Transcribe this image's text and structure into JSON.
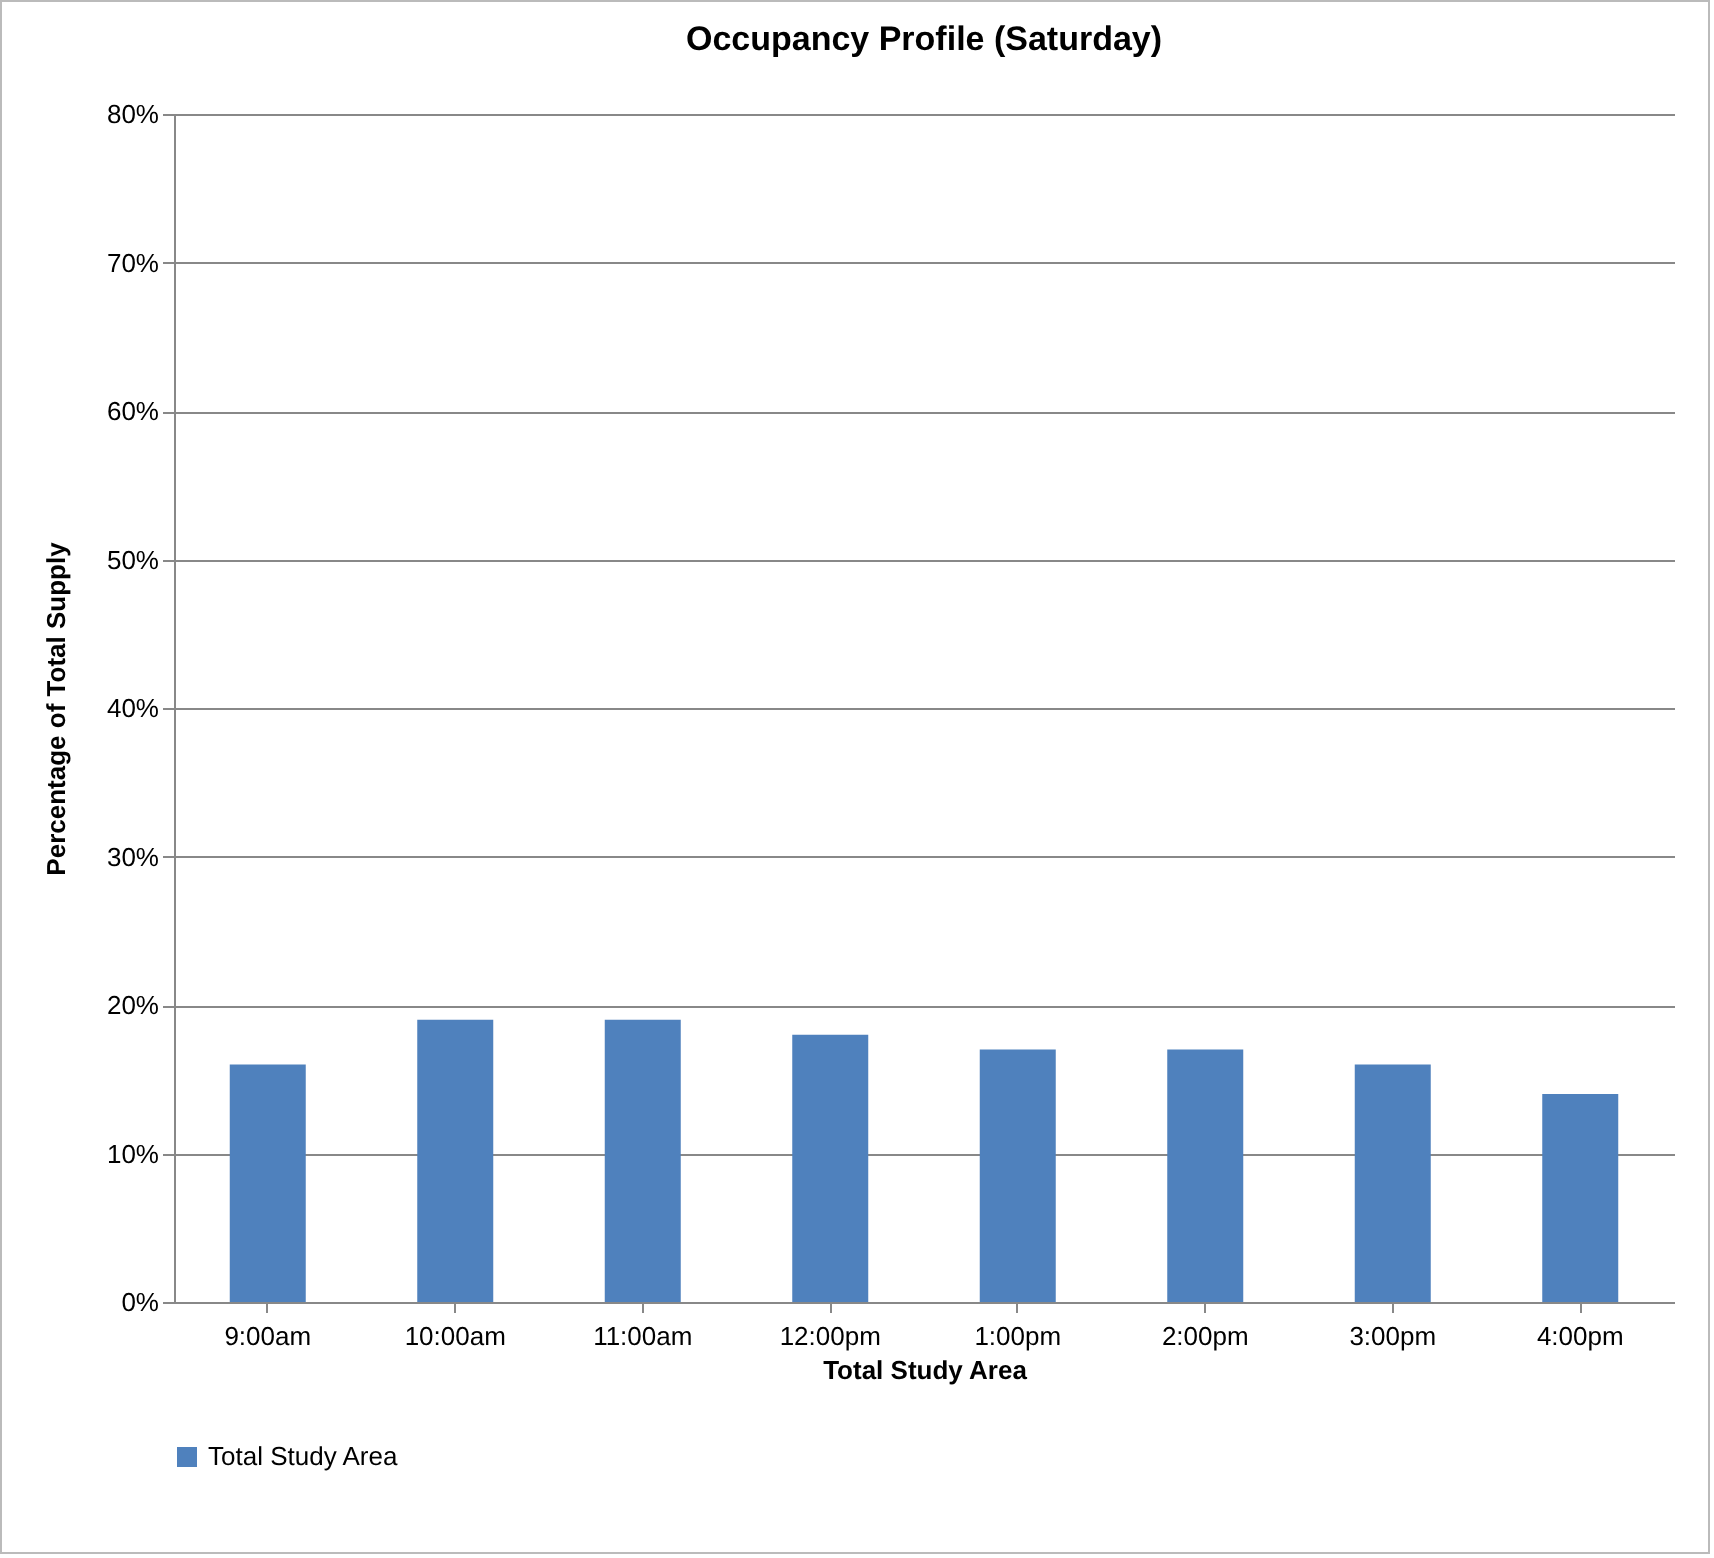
{
  "chart_data": {
    "type": "bar",
    "title": "Occupancy Profile (Saturday)",
    "xlabel": "Total Study Area",
    "ylabel": "Percentage of Total Supply",
    "categories": [
      "9:00am",
      "10:00am",
      "11:00am",
      "12:00pm",
      "1:00pm",
      "2:00pm",
      "3:00pm",
      "4:00pm"
    ],
    "series": [
      {
        "name": "Total Study Area",
        "color": "#4f81bd",
        "values": [
          16,
          19,
          19,
          18,
          17,
          17,
          16,
          14
        ]
      }
    ],
    "ylim": [
      0,
      80
    ],
    "yticks": [
      {
        "value": 0,
        "label": "0%"
      },
      {
        "value": 10,
        "label": "10%"
      },
      {
        "value": 20,
        "label": "20%"
      },
      {
        "value": 30,
        "label": "30%"
      },
      {
        "value": 40,
        "label": "40%"
      },
      {
        "value": 50,
        "label": "50%"
      },
      {
        "value": 60,
        "label": "60%"
      },
      {
        "value": 70,
        "label": "70%"
      },
      {
        "value": 80,
        "label": "80%"
      }
    ],
    "grid": "y",
    "legend": "bottom"
  }
}
